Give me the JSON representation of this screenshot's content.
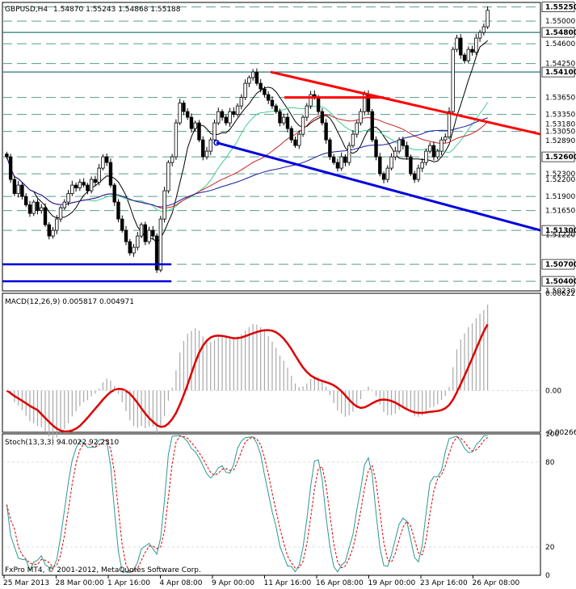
{
  "header": {
    "symbol": "GBPUSD,H4",
    "ohlc": "1.54870 1.55243 1.54868 1.55188",
    "macd": "MACD(12,26,9) 0.005817 0.004971",
    "stoch": "Stoch(13,3,3) 94.0022 92.2310"
  },
  "footer": {
    "copyright": "FxPro MT4, © 2001-2012, MetaQuotes Software Corp."
  },
  "colors": {
    "grid": "#5a9a90",
    "level_line": "#2b7a75",
    "candle": "#000000",
    "red_trend": "#ff0000",
    "blue_trend": "#0000dd",
    "ma_fast": "#000000",
    "ma_green": "#3ecf8e",
    "ma_red": "#cc2222",
    "ma_blue": "#1a1aa0",
    "macd_hist": "#a8a8a8",
    "macd_signal": "#dd0000",
    "stoch_main": "#2a9a90",
    "stoch_signal": "#dd0000"
  },
  "chart_data": [
    {
      "type": "candlestick",
      "panel": "price",
      "ylim": [
        1.5023,
        1.5533
      ],
      "price_labels": [
        "1.55250",
        "1.55000",
        "1.54800",
        "1.54600",
        "1.54250",
        "1.54100",
        "1.53650",
        "1.53350",
        "1.53180",
        "1.53050",
        "1.52890",
        "1.52600",
        "1.52300",
        "1.52200",
        "1.51900",
        "1.51650",
        "1.51300",
        "1.51220",
        "1.50700",
        "1.50400",
        "1.50230"
      ],
      "level_lines": [
        1.5525,
        1.55,
        1.548,
        1.546,
        1.5425,
        1.541,
        1.5365,
        1.5335,
        1.5305,
        1.526,
        1.523,
        1.519,
        1.5165,
        1.513,
        1.507,
        1.504
      ],
      "solid_levels": [
        1.548,
        1.541
      ],
      "highlight_labels": [
        "1.55250",
        "1.54800",
        "1.54100",
        "1.52600",
        "1.51300",
        "1.50700",
        "1.50400"
      ],
      "closes": [
        1.526,
        1.522,
        1.5195,
        1.521,
        1.519,
        1.5175,
        1.516,
        1.518,
        1.5165,
        1.517,
        1.514,
        1.512,
        1.513,
        1.515,
        1.517,
        1.518,
        1.5195,
        1.521,
        1.5205,
        1.5215,
        1.521,
        1.52,
        1.522,
        1.5215,
        1.524,
        1.526,
        1.525,
        1.521,
        1.518,
        1.515,
        1.513,
        1.511,
        1.509,
        1.51,
        1.512,
        1.514,
        1.511,
        1.513,
        1.512,
        1.506,
        1.515,
        1.52,
        1.525,
        1.526,
        1.532,
        1.5355,
        1.534,
        1.533,
        1.531,
        1.532,
        1.529,
        1.526,
        1.527,
        1.529,
        1.532,
        1.534,
        1.533,
        1.532,
        1.534,
        1.5335,
        1.535,
        1.5365,
        1.539,
        1.54,
        1.541,
        1.539,
        1.538,
        1.537,
        1.536,
        1.535,
        1.534,
        1.532,
        1.533,
        1.531,
        1.529,
        1.528,
        1.53,
        1.533,
        1.535,
        1.537,
        1.5365,
        1.534,
        1.532,
        1.529,
        1.526,
        1.525,
        1.524,
        1.526,
        1.525,
        1.528,
        1.53,
        1.532,
        1.534,
        1.537,
        1.534,
        1.529,
        1.526,
        1.523,
        1.522,
        1.524,
        1.526,
        1.527,
        1.529,
        1.528,
        1.526,
        1.523,
        1.522,
        1.524,
        1.525,
        1.527,
        1.528,
        1.526,
        1.527,
        1.529,
        1.5295,
        1.534,
        1.545,
        1.547,
        1.544,
        1.543,
        1.545,
        1.5445,
        1.547,
        1.548,
        1.549,
        1.5519
      ],
      "trendlines": [
        {
          "color": "red",
          "points": [
            [
              1.541,
              1.5355
            ],
            [
              1.5365,
              1.5365
            ],
            [
              1.5365,
              1.53
            ]
          ]
        },
        {
          "color": "blue",
          "points": [
            [
              1.5285,
              1.513
            ]
          ]
        }
      ],
      "horizontal_blue": [
        1.507,
        1.504
      ],
      "x_labels": [
        "25 Mar 2013",
        "28 Mar 00:00",
        "1 Apr 16:00",
        "4 Apr 08:00",
        "9 Apr 00:00",
        "11 Apr 16:00",
        "16 Apr 08:00",
        "19 Apr 00:00",
        "23 Apr 16:00",
        "26 Apr 08:00"
      ]
    },
    {
      "type": "bar",
      "panel": "macd",
      "title": "MACD(12,26,9) 0.005817 0.004971",
      "y_labels": [
        "0.00622",
        "0.00",
        "-0.00266"
      ],
      "ylim": [
        -0.00266,
        0.00622
      ]
    },
    {
      "type": "line",
      "panel": "stoch",
      "title": "Stoch(13,3,3) 94.0022 92.2310",
      "y_labels": [
        "100",
        "80",
        "20",
        "0"
      ],
      "ylim": [
        0,
        100
      ]
    }
  ]
}
